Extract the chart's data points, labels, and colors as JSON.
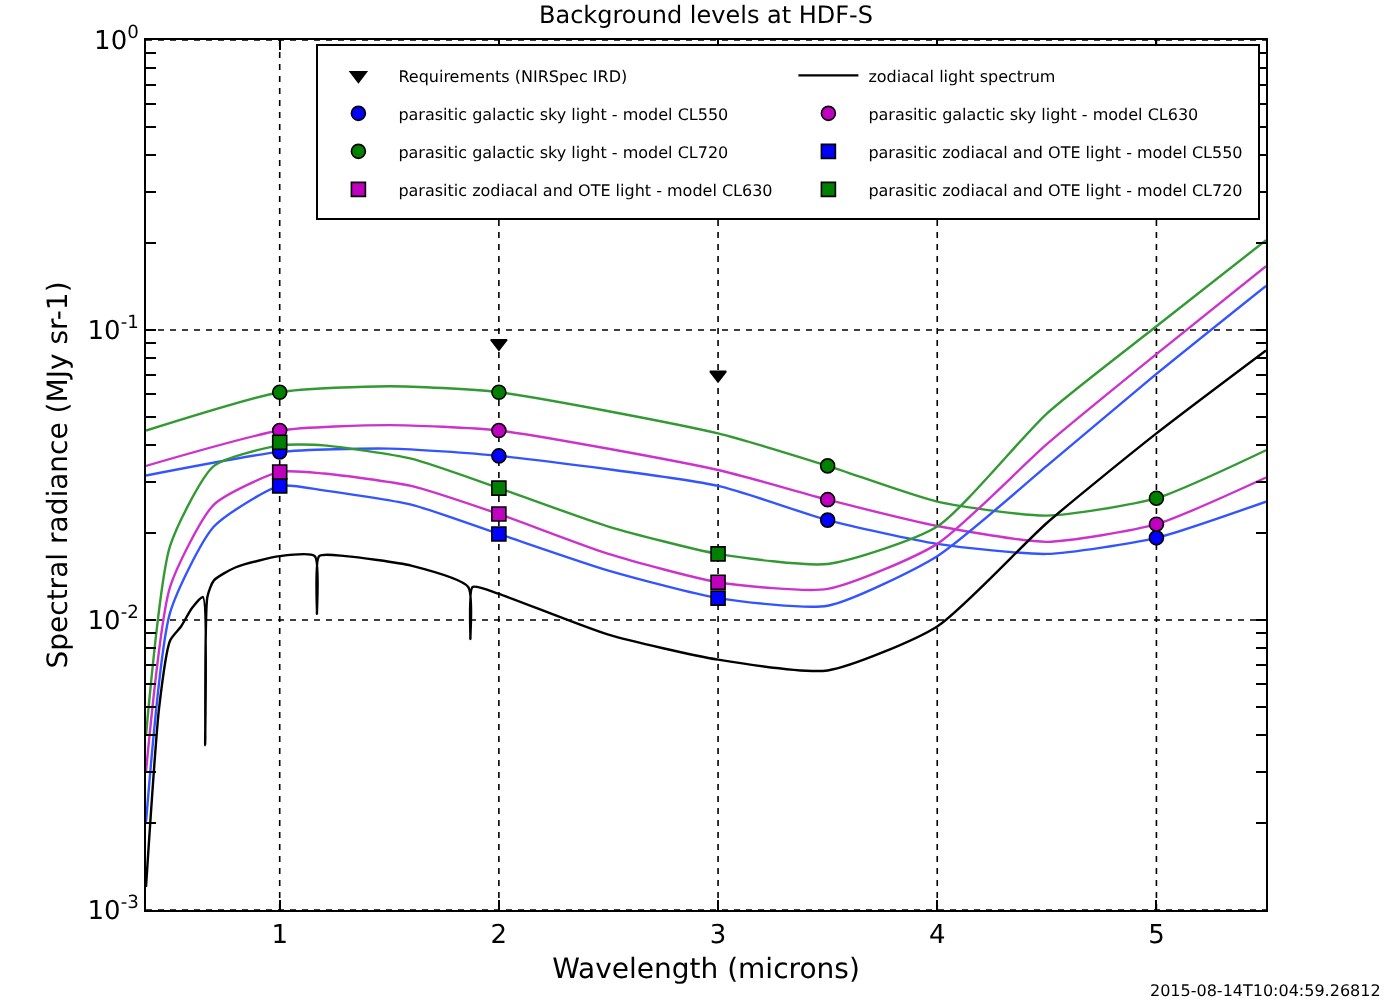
{
  "chart_data": {
    "type": "line",
    "title": "Background levels at HDF-S",
    "xlabel": "Wavelength (microns)",
    "ylabel": "Spectral radiance (MJy sr-1)",
    "log": "y",
    "grid": true,
    "legend": "top right",
    "xlim": [
      0.39,
      5.5
    ],
    "xticks": [
      1,
      2,
      3,
      4,
      5
    ],
    "ylim": [
      0.001,
      1
    ],
    "yticks": [
      {
        "value": 0.001,
        "label": "10$^{-3}$"
      },
      {
        "value": 0.002,
        "label": null
      },
      {
        "value": 0.003,
        "label": null
      },
      {
        "value": 0.004,
        "label": null
      },
      {
        "value": 0.005,
        "label": null
      },
      {
        "value": 0.006,
        "label": null
      },
      {
        "value": 0.007,
        "label": null
      },
      {
        "value": 0.008,
        "label": null
      },
      {
        "value": 0.009,
        "label": null
      },
      {
        "value": 0.01,
        "label": "10$^{-2}$"
      },
      {
        "value": 0.02,
        "label": null
      },
      {
        "value": 0.03,
        "label": null
      },
      {
        "value": 0.04,
        "label": null
      },
      {
        "value": 0.05,
        "label": null
      },
      {
        "value": 0.06,
        "label": null
      },
      {
        "value": 0.07,
        "label": null
      },
      {
        "value": 0.08,
        "label": null
      },
      {
        "value": 0.09,
        "label": null
      },
      {
        "value": 0.1,
        "label": "10$^{-1}$"
      },
      {
        "value": 0.2,
        "label": null
      },
      {
        "value": 0.3,
        "label": null
      },
      {
        "value": 0.4,
        "label": null
      },
      {
        "value": 0.5,
        "label": null
      },
      {
        "value": 0.6,
        "label": null
      },
      {
        "value": 0.7,
        "label": null
      },
      {
        "value": 0.8,
        "label": null
      },
      {
        "value": 0.9,
        "label": null
      },
      {
        "value": 1,
        "label": "10$^{0}$"
      }
    ],
    "annotations": [
      "2015-08-14T10:04:59.26812"
    ],
    "series": [
      {
        "type": "line",
        "color": "#3355ff",
        "marker": "none",
        "line_style": "solid",
        "x": [
          0.39,
          1,
          1.5,
          2,
          3,
          3.5,
          4,
          4.5,
          5,
          5.5
        ],
        "values": [
          0.0315,
          0.038,
          0.039,
          0.0368,
          0.029,
          0.0221,
          0.0183,
          0.0169,
          0.0192,
          0.0256
        ]
      },
      {
        "type": "line",
        "color": "#cc33cc",
        "marker": "none",
        "line_style": "solid",
        "x": [
          0.39,
          1,
          1.5,
          2,
          3,
          3.5,
          4,
          4.5,
          5,
          5.5
        ],
        "values": [
          0.034,
          0.045,
          0.047,
          0.045,
          0.0329,
          0.026,
          0.0211,
          0.0186,
          0.0214,
          0.031
        ]
      },
      {
        "type": "line",
        "color": "#339933",
        "marker": "none",
        "line_style": "solid",
        "x": [
          0.39,
          1,
          1.5,
          2,
          3,
          3.5,
          4,
          4.5,
          5,
          5.5
        ],
        "values": [
          0.045,
          0.061,
          0.064,
          0.061,
          0.044,
          0.034,
          0.0256,
          0.0229,
          0.0263,
          0.0385
        ]
      },
      {
        "type": "line",
        "color": "#3355ff",
        "marker": "none",
        "line_style": "solid",
        "x": [
          0.39,
          0.5,
          0.7,
          1,
          1.2,
          1.6,
          2,
          2.5,
          3,
          3.5,
          4,
          4.5,
          5,
          5.5
        ],
        "values": [
          0.002,
          0.0106,
          0.021,
          0.029,
          0.028,
          0.025,
          0.0198,
          0.0148,
          0.0119,
          0.0112,
          0.0166,
          0.034,
          0.0706,
          0.142
        ]
      },
      {
        "type": "line",
        "color": "#cc33cc",
        "marker": "none",
        "line_style": "solid",
        "x": [
          0.39,
          0.5,
          0.7,
          1,
          1.2,
          1.6,
          2,
          2.5,
          3,
          3.5,
          4,
          4.5,
          5,
          5.5
        ],
        "values": [
          0.003,
          0.013,
          0.025,
          0.0324,
          0.032,
          0.029,
          0.0232,
          0.0169,
          0.0135,
          0.0128,
          0.0183,
          0.0404,
          0.0826,
          0.166
        ]
      },
      {
        "type": "line",
        "color": "#339933",
        "marker": "none",
        "line_style": "solid",
        "x": [
          0.39,
          0.5,
          0.7,
          1,
          1.2,
          1.6,
          2,
          2.5,
          3,
          3.5,
          4,
          4.5,
          5,
          5.5
        ],
        "values": [
          0.004,
          0.018,
          0.034,
          0.04,
          0.04,
          0.036,
          0.0285,
          0.021,
          0.0169,
          0.0156,
          0.021,
          0.0515,
          0.103,
          0.204
        ]
      },
      {
        "type": "scatter",
        "name": "Requirements (NIRSpec IRD)",
        "color": "#000000",
        "marker": "triangle",
        "x": [
          2,
          3
        ],
        "values": [
          0.09,
          0.07
        ]
      },
      {
        "type": "line",
        "name": "zodiacal light spectrum",
        "color": "#000000",
        "marker": "none",
        "line_style": "solid",
        "x": [
          0.39,
          0.45,
          0.5,
          0.55,
          0.6,
          0.65,
          0.66,
          0.67,
          0.7,
          0.8,
          1,
          1.16,
          1.17,
          1.18,
          1.3,
          1.6,
          1.86,
          1.87,
          1.88,
          2,
          2.5,
          3,
          3.5,
          4,
          4.5,
          5,
          5.5
        ],
        "values": [
          0.0012,
          0.005,
          0.0085,
          0.0095,
          0.011,
          0.012,
          0.0037,
          0.012,
          0.0137,
          0.0152,
          0.0166,
          0.0166,
          0.0105,
          0.0166,
          0.0166,
          0.0154,
          0.013,
          0.0086,
          0.013,
          0.0123,
          0.0089,
          0.0073,
          0.0067,
          0.0095,
          0.0216,
          0.044,
          0.085
        ]
      },
      {
        "type": "scatter",
        "name": "parasitic galactic sky light - model CL550",
        "color": "#0000ff",
        "marker": "circle",
        "x": [
          1,
          2,
          3.5,
          5
        ],
        "values": [
          0.038,
          0.0368,
          0.0221,
          0.0192
        ]
      },
      {
        "type": "scatter",
        "name": "parasitic galactic sky light - model CL630",
        "color": "#bf00bf",
        "marker": "circle",
        "x": [
          1,
          2,
          3.5,
          5
        ],
        "values": [
          0.045,
          0.045,
          0.026,
          0.0214
        ]
      },
      {
        "type": "scatter",
        "name": "parasitic galactic sky light - model CL720",
        "color": "#008000",
        "marker": "circle",
        "x": [
          1,
          2,
          3.5,
          5
        ],
        "values": [
          0.061,
          0.061,
          0.034,
          0.0263
        ]
      },
      {
        "type": "scatter",
        "name": "parasitic zodiacal and OTE light - model CL550",
        "color": "#0000ff",
        "marker": "square",
        "x": [
          1,
          2,
          3
        ],
        "values": [
          0.029,
          0.0198,
          0.0119
        ]
      },
      {
        "type": "scatter",
        "name": "parasitic zodiacal and OTE light - model CL630",
        "color": "#bf00bf",
        "marker": "square",
        "x": [
          1,
          2,
          3
        ],
        "values": [
          0.0324,
          0.0232,
          0.0135
        ]
      },
      {
        "type": "scatter",
        "name": "parasitic zodiacal and OTE light - model CL720",
        "color": "#008000",
        "marker": "square",
        "x": [
          1,
          2,
          3
        ],
        "values": [
          0.041,
          0.0285,
          0.0169
        ]
      }
    ]
  }
}
